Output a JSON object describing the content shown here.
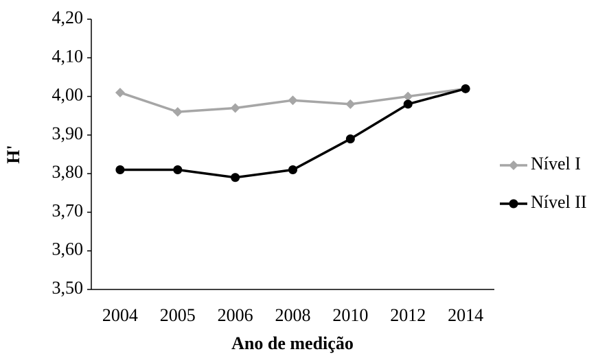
{
  "chart_data": {
    "type": "line",
    "y_label": "H'",
    "x_label": "Ano de medição",
    "categories": [
      "2004",
      "2005",
      "2006",
      "2008",
      "2010",
      "2012",
      "2014"
    ],
    "series": [
      {
        "name": "Nível I",
        "color": "#a6a6a6",
        "marker": "diamond",
        "values": [
          4.01,
          3.96,
          3.97,
          3.99,
          3.98,
          4.0,
          4.02
        ]
      },
      {
        "name": "Nível II",
        "color": "#000000",
        "marker": "circle",
        "values": [
          3.81,
          3.81,
          3.79,
          3.81,
          3.89,
          3.98,
          4.02
        ]
      }
    ],
    "ylim": [
      3.5,
      4.2
    ],
    "yticks": [
      {
        "value": 3.5,
        "label": "3,50"
      },
      {
        "value": 3.6,
        "label": "3,60"
      },
      {
        "value": 3.7,
        "label": "3,70"
      },
      {
        "value": 3.8,
        "label": "3,80"
      },
      {
        "value": 3.9,
        "label": "3,90"
      },
      {
        "value": 4.0,
        "label": "4,00"
      },
      {
        "value": 4.1,
        "label": "4,10"
      },
      {
        "value": 4.2,
        "label": "4,20"
      }
    ],
    "grid": false,
    "legend": "right"
  }
}
